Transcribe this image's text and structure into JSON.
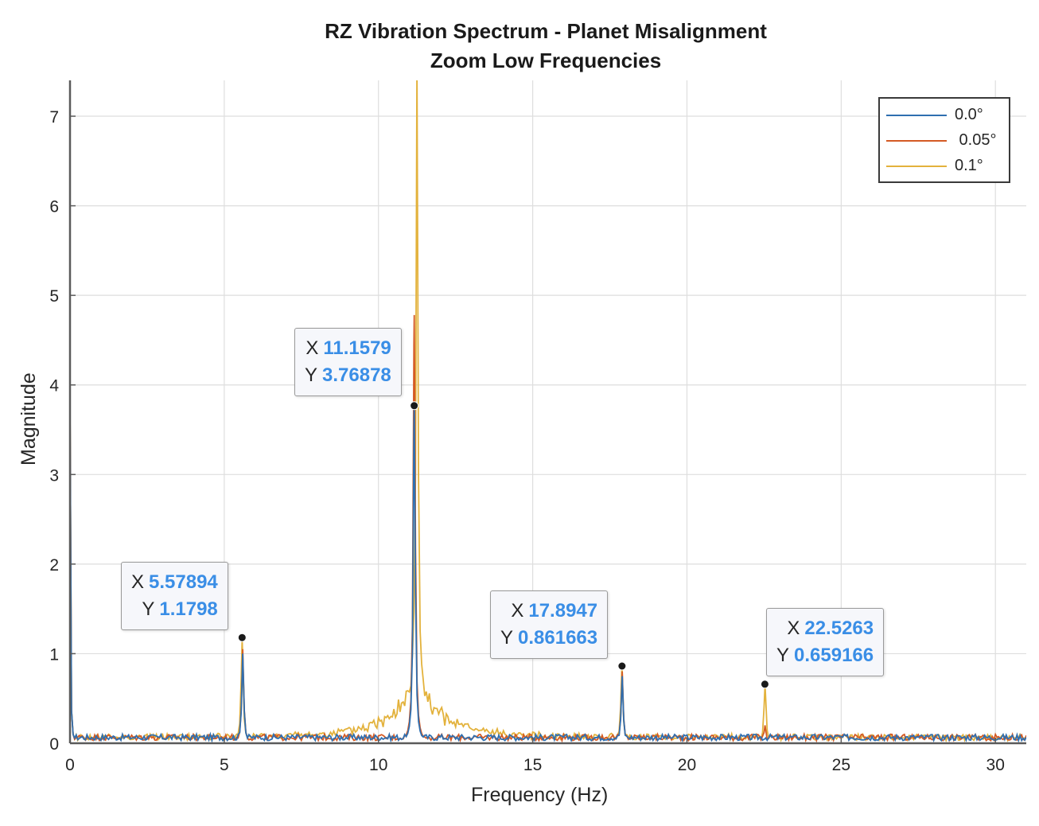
{
  "chart_data": {
    "type": "line",
    "title": "RZ Vibration Spectrum - Planet Misalignment",
    "subtitle": "Zoom Low Frequencies",
    "xlabel": "Frequency (Hz)",
    "ylabel": "Magnitude",
    "xlim": [
      0,
      31
    ],
    "ylim": [
      0,
      7.4
    ],
    "xticks": [
      0,
      5,
      10,
      15,
      20,
      25,
      30
    ],
    "yticks": [
      0,
      1,
      2,
      3,
      4,
      5,
      6,
      7
    ],
    "grid": true,
    "legend_position": "top-right",
    "series": [
      {
        "name": "0.0°",
        "color": "#2f6fb0",
        "peaks": [
          [
            0.0,
            3.75
          ],
          [
            5.6,
            1.0
          ],
          [
            11.16,
            3.77
          ],
          [
            17.9,
            0.75
          ],
          [
            22.53,
            0.05
          ]
        ]
      },
      {
        "name": " 0.05°",
        "color": "#d45a24",
        "peaks": [
          [
            0.0,
            3.75
          ],
          [
            5.6,
            1.05
          ],
          [
            11.16,
            4.78
          ],
          [
            17.9,
            0.8
          ],
          [
            22.53,
            0.2
          ]
        ]
      },
      {
        "name": "0.1°",
        "color": "#e3b23c",
        "peaks": [
          [
            0.0,
            3.75
          ],
          [
            5.58,
            1.18
          ],
          [
            11.25,
            7.4
          ],
          [
            17.89,
            0.86
          ],
          [
            22.53,
            0.66
          ]
        ]
      }
    ],
    "datatips": [
      {
        "x_label": "X",
        "x": "5.57894",
        "y_label": "Y",
        "y": "1.1798"
      },
      {
        "x_label": "X",
        "x": "11.1579",
        "y_label": "Y",
        "y": "3.76878"
      },
      {
        "x_label": "X",
        "x": "17.8947",
        "y_label": "Y",
        "y": "0.861663"
      },
      {
        "x_label": "X",
        "x": "22.5263",
        "y_label": "Y",
        "y": "0.659166"
      }
    ]
  }
}
